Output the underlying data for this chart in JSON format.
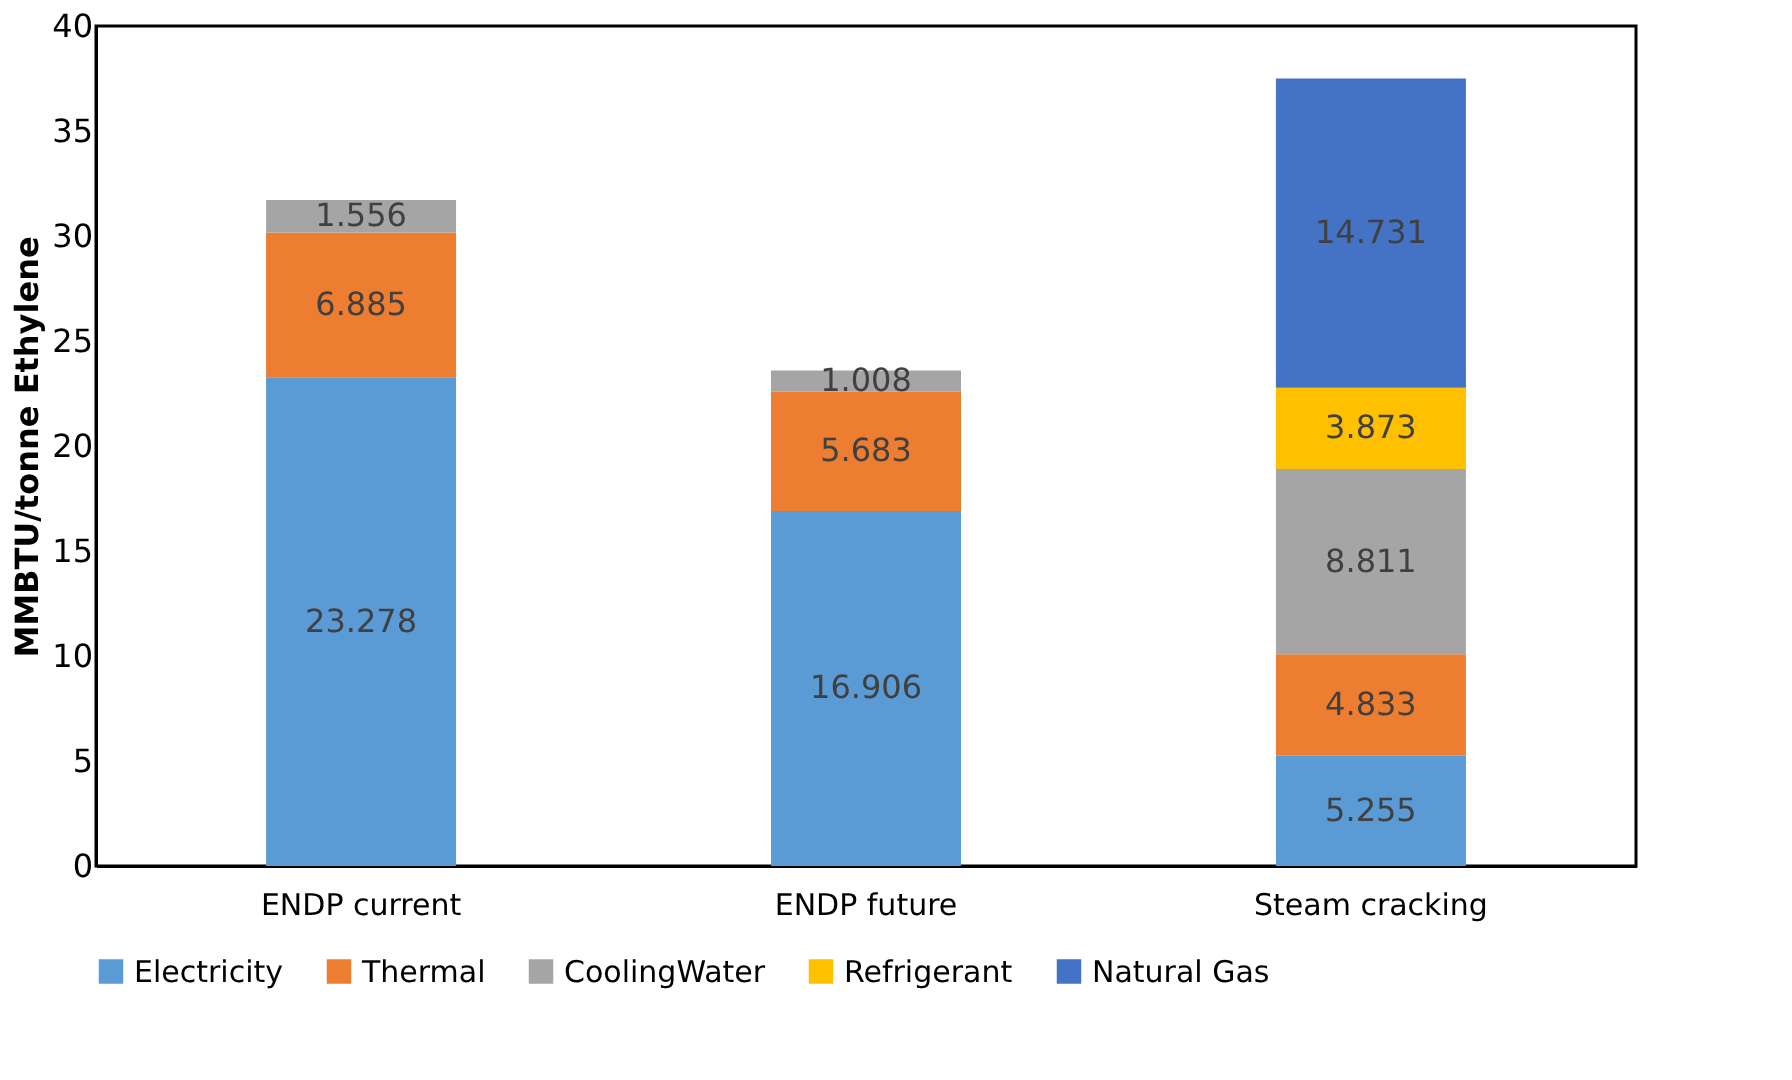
{
  "chart_data": {
    "type": "bar",
    "stacked": true,
    "ylabel": "MMBTU/tonne Ethylene",
    "categories": [
      "ENDP current",
      "ENDP future",
      "Steam cracking"
    ],
    "series": [
      {
        "name": "Electricity",
        "color": "#5b9bd5",
        "values": [
          23.278,
          16.906,
          5.255
        ]
      },
      {
        "name": "Thermal",
        "color": "#ed7d31",
        "values": [
          6.885,
          5.683,
          4.833
        ]
      },
      {
        "name": "CoolingWater",
        "color": "#a5a5a5",
        "values": [
          1.556,
          1.008,
          8.811
        ]
      },
      {
        "name": "Refrigerant",
        "color": "#ffc000",
        "values": [
          null,
          null,
          3.873
        ]
      },
      {
        "name": "Natural Gas",
        "color": "#4472c4",
        "values": [
          null,
          null,
          14.731
        ]
      }
    ],
    "ylim": [
      0,
      40
    ],
    "yticks": [
      0,
      5,
      10,
      15,
      20,
      25,
      30,
      35,
      40
    ],
    "grid": false,
    "legend": "bottom",
    "data_labels": true
  }
}
